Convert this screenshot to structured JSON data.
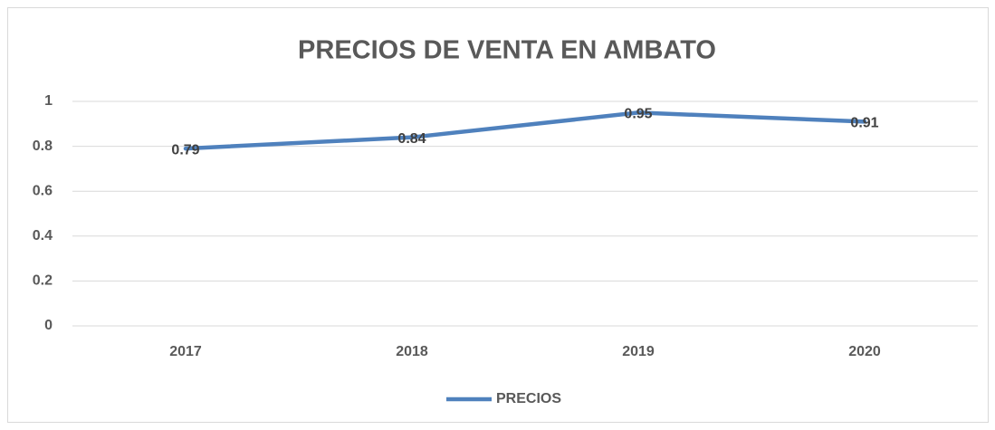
{
  "chart_data": {
    "type": "line",
    "title": "PRECIOS DE VENTA EN AMBATO",
    "categories": [
      "2017",
      "2018",
      "2019",
      "2020"
    ],
    "series": [
      {
        "name": "PRECIOS",
        "color": "#4f81bd",
        "values": [
          0.79,
          0.84,
          0.95,
          0.91
        ]
      }
    ],
    "ylim": [
      0,
      1
    ],
    "yticks": [
      0,
      0.2,
      0.4,
      0.6,
      0.8,
      1
    ],
    "grid": true,
    "legend": "bottom",
    "data_labels": true
  }
}
